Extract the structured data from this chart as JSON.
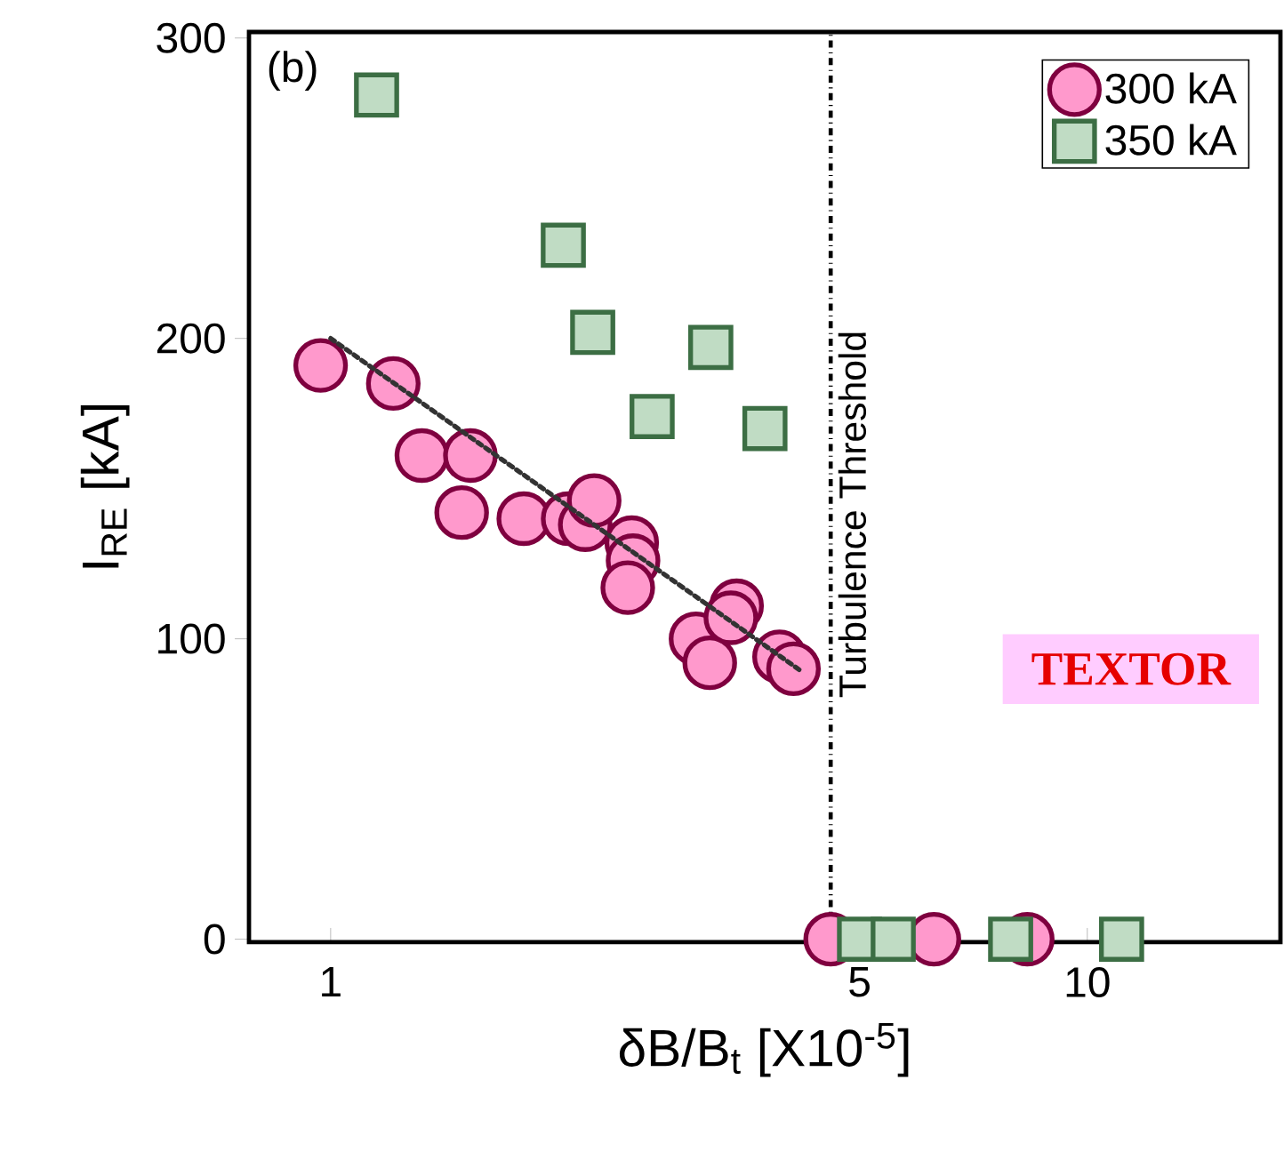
{
  "chart_data": {
    "type": "scatter",
    "xlabel": "δB/B$_{t}$ [X10$^{-5}$]",
    "ylabel": "I$_{RE}$ [kA]",
    "log": "x",
    "xlim": [
      0.78,
      18
    ],
    "xticks": [
      1,
      5,
      10
    ],
    "ylim": [
      -1,
      302
    ],
    "yticks": [
      0,
      100,
      200,
      300
    ],
    "legend": "top right",
    "grid": false,
    "series": [
      {
        "name": "300 kA",
        "color": "#ff99cc",
        "marker": "circle",
        "x": [
          0.97,
          1.21,
          1.32,
          1.53,
          1.49,
          1.8,
          2.06,
          2.17,
          2.23,
          2.5,
          2.51,
          2.47,
          3.04,
          3.17,
          3.44,
          3.38,
          3.92,
          4.09,
          4.58,
          6.27,
          8.33
        ],
        "values": [
          191,
          185,
          161,
          161,
          142,
          140,
          140,
          138,
          146,
          132,
          126,
          117,
          100,
          92,
          111,
          107,
          94,
          90,
          0,
          0,
          0
        ]
      },
      {
        "name": "350 kA",
        "color": "#c0dcc4",
        "marker": "square",
        "x": [
          1.15,
          2.03,
          2.22,
          2.66,
          3.18,
          3.75,
          5.0,
          5.54,
          7.92,
          11.1
        ],
        "values": [
          281,
          231,
          202,
          174,
          197,
          170,
          0,
          0,
          0,
          0
        ]
      },
      {
        "type": "line",
        "color": "#333333",
        "line_style": "dotted",
        "marker": "none",
        "x": [
          1,
          4.2
        ],
        "values": [
          200,
          89
        ]
      }
    ],
    "ref_lines": [
      {
        "axis": "x",
        "value": 4.58,
        "label": "Turbulence Threshold",
        "line_style": "dashdot",
        "color": "#000000"
      }
    ],
    "annotations": [
      "(b)",
      "TEXTOR"
    ]
  }
}
